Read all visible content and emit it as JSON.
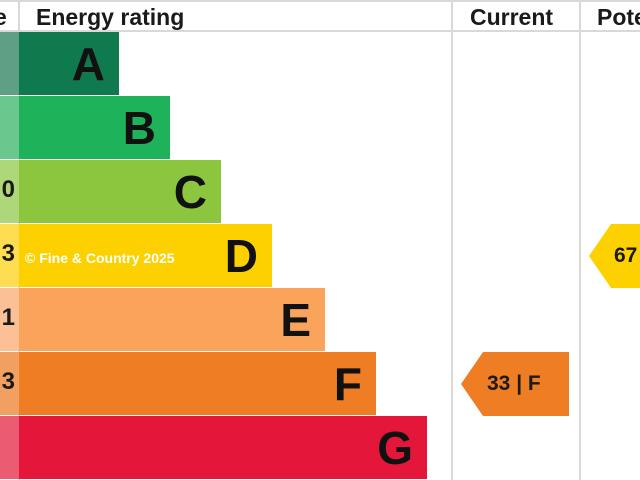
{
  "header": {
    "left_fragment": "e",
    "energy_rating": "Energy rating",
    "current": "Current",
    "potential_fragment": "Pote"
  },
  "bands": [
    {
      "letter": "A",
      "color": "#0e7a4e",
      "strip_color": "#5e9f85",
      "strip_text": ""
    },
    {
      "letter": "B",
      "color": "#1eb25a",
      "strip_color": "#6ac78e",
      "strip_text": ""
    },
    {
      "letter": "C",
      "color": "#8cc63f",
      "strip_color": "#aed77a",
      "strip_text": "0"
    },
    {
      "letter": "D",
      "color": "#fdd000",
      "strip_color": "#fedd52",
      "strip_text": "3"
    },
    {
      "letter": "E",
      "color": "#f9a45a",
      "strip_color": "#fbc095",
      "strip_text": "1"
    },
    {
      "letter": "F",
      "color": "#ee7d23",
      "strip_color": "#f29f62",
      "strip_text": "3"
    },
    {
      "letter": "G",
      "color": "#e4173a",
      "strip_color": "#eb5b72",
      "strip_text": ""
    }
  ],
  "watermark": "© Fine & Country 2025",
  "current_rating": {
    "text": "33 | F",
    "color": "#ee7d23"
  },
  "potential_rating": {
    "text": "67",
    "color": "#fdd000"
  }
}
